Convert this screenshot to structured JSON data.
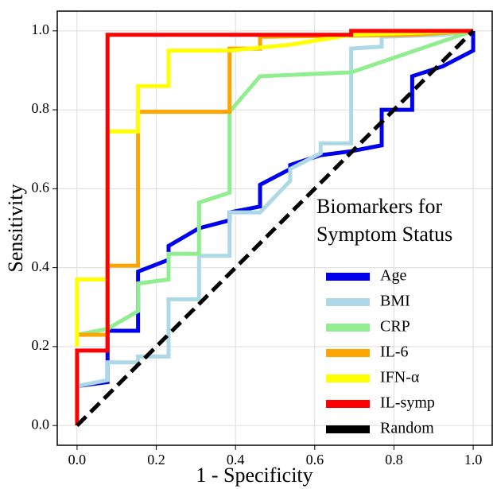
{
  "chart_data": {
    "type": "line",
    "xlabel": "1 - Specificity",
    "ylabel": "Sensitivity",
    "legend_title": [
      "Biomarkers for",
      "Symptom Status"
    ],
    "legend": "lower right",
    "grid": true,
    "xlim": [
      -0.05,
      1.05
    ],
    "ylim": [
      -0.05,
      1.05
    ],
    "xticks": [
      {
        "value": 0,
        "label": "0.0"
      },
      {
        "value": 0.2,
        "label": "0.2"
      },
      {
        "value": 0.4,
        "label": "0.4"
      },
      {
        "value": 0.6,
        "label": "0.6"
      },
      {
        "value": 0.8,
        "label": "0.8"
      },
      {
        "value": 1,
        "label": "1.0"
      }
    ],
    "yticks": [
      {
        "value": 0,
        "label": "0.0"
      },
      {
        "value": 0.2,
        "label": "0.2"
      },
      {
        "value": 0.4,
        "label": "0.4"
      },
      {
        "value": 0.6,
        "label": "0.6"
      },
      {
        "value": 0.8,
        "label": "0.8"
      },
      {
        "value": 1,
        "label": "1.0"
      }
    ],
    "series": [
      {
        "name": "Age",
        "color": "#0000ee",
        "x": [
          0,
          0.077,
          0.077,
          0.154,
          0.154,
          0.231,
          0.231,
          0.308,
          0.385,
          0.385,
          0.462,
          0.462,
          0.538,
          0.538,
          0.615,
          0.692,
          0.769,
          0.769,
          0.846,
          0.846,
          0.923,
          1.0,
          1.0
        ],
        "values": [
          0.1,
          0.11,
          0.24,
          0.24,
          0.39,
          0.42,
          0.455,
          0.5,
          0.52,
          0.54,
          0.555,
          0.61,
          0.65,
          0.66,
          0.685,
          0.695,
          0.71,
          0.8,
          0.8,
          0.885,
          0.91,
          0.95,
          1.0
        ]
      },
      {
        "name": "BMI",
        "color": "#add8e6",
        "x": [
          0,
          0.077,
          0.077,
          0.154,
          0.154,
          0.231,
          0.231,
          0.308,
          0.308,
          0.385,
          0.385,
          0.462,
          0.538,
          0.538,
          0.615,
          0.615,
          0.692,
          0.692,
          0.769,
          0.769,
          0.923,
          1.0
        ],
        "values": [
          0.1,
          0.115,
          0.16,
          0.16,
          0.175,
          0.175,
          0.32,
          0.32,
          0.43,
          0.43,
          0.54,
          0.54,
          0.62,
          0.65,
          0.69,
          0.715,
          0.715,
          0.955,
          0.96,
          0.985,
          0.99,
          1.0
        ]
      },
      {
        "name": "CRP",
        "color": "#90ee90",
        "x": [
          0,
          0.077,
          0.154,
          0.154,
          0.231,
          0.231,
          0.308,
          0.308,
          0.385,
          0.385,
          0.462,
          0.692,
          1.0
        ],
        "values": [
          0.23,
          0.245,
          0.29,
          0.36,
          0.37,
          0.435,
          0.435,
          0.565,
          0.59,
          0.795,
          0.885,
          0.895,
          1.0
        ]
      },
      {
        "name": "IL-6",
        "color": "#ffa500",
        "x": [
          0,
          0.077,
          0.077,
          0.154,
          0.154,
          0.385,
          0.385,
          0.462,
          0.462,
          0.846,
          1.0
        ],
        "values": [
          0.23,
          0.23,
          0.405,
          0.405,
          0.795,
          0.795,
          0.955,
          0.955,
          0.985,
          0.99,
          1.0
        ]
      },
      {
        "name": "IFN-α",
        "color": "#ffff00",
        "x": [
          0,
          0,
          0.077,
          0.077,
          0.154,
          0.154,
          0.231,
          0.231,
          0.385,
          0.538,
          0.692,
          1.0
        ],
        "values": [
          0.2,
          0.37,
          0.37,
          0.745,
          0.745,
          0.86,
          0.86,
          0.95,
          0.95,
          0.965,
          0.99,
          1.0
        ]
      },
      {
        "name": "IL-symp",
        "color": "#ff0000",
        "x": [
          0,
          0,
          0.077,
          0.077,
          0.692,
          0.692,
          1.0
        ],
        "values": [
          0,
          0.19,
          0.19,
          0.99,
          0.99,
          1.0,
          1.0
        ]
      },
      {
        "name": "Random",
        "color": "#000000",
        "linestyle": "dashed",
        "x": [
          0,
          1
        ],
        "values": [
          0,
          1
        ]
      }
    ]
  }
}
